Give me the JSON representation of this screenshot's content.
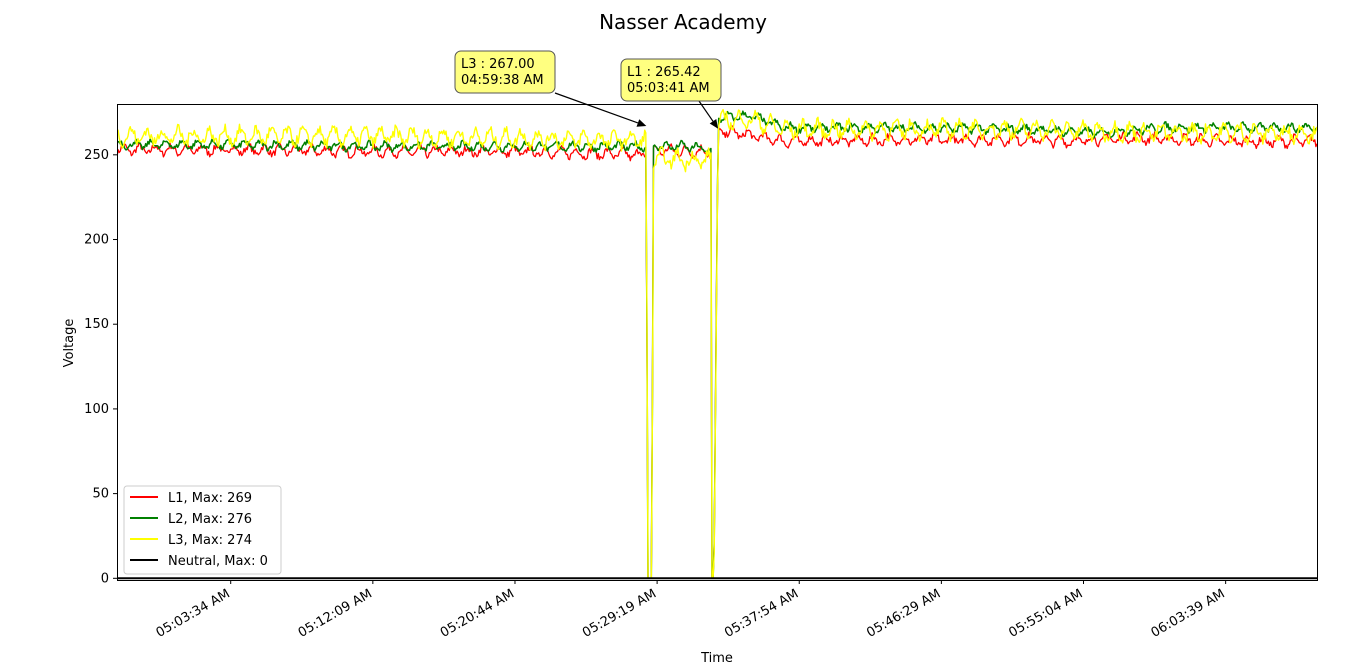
{
  "chart_data": {
    "type": "line",
    "title": "Nasser Academy",
    "xlabel": "Time",
    "ylabel": "Voltage",
    "x_range": [
      "04:56:42 AM",
      "06:09:10 AM"
    ],
    "ylim": [
      -1,
      280
    ],
    "grid": false,
    "legend_placement": "lower-left",
    "yticks": [
      0,
      50,
      100,
      150,
      200,
      250
    ],
    "xticks": [
      "05:03:34 AM",
      "05:12:09 AM",
      "05:20:44 AM",
      "05:29:19 AM",
      "05:37:54 AM",
      "05:46:29 AM",
      "05:55:04 AM",
      "06:03:39 AM"
    ],
    "outage_windows": [
      [
        "05:28:45 AM",
        "05:29:00 AM"
      ],
      [
        "05:32:35 AM",
        "05:32:45 AM"
      ]
    ],
    "series": [
      {
        "name": "L1, Max: 269",
        "color": "#ff0000",
        "x": [
          "04:56:42 AM",
          "05:04:00 AM",
          "05:12:00 AM",
          "05:20:00 AM",
          "05:25:00 AM",
          "05:28:40 AM",
          "05:28:45 AM",
          "05:29:00 AM",
          "05:29:05 AM",
          "05:31:00 AM",
          "05:32:35 AM",
          "05:32:45 AM",
          "05:33:00 AM",
          "05:34:00 AM",
          "05:37:00 AM",
          "05:45:00 AM",
          "05:52:00 AM",
          "05:54:00 AM",
          "05:58:00 AM",
          "06:04:00 AM",
          "06:09:10 AM"
        ],
        "y": [
          253,
          253,
          252,
          252,
          251,
          250,
          0,
          0,
          253,
          252,
          252,
          0,
          264,
          263,
          258,
          259,
          259,
          258,
          260,
          258,
          258
        ]
      },
      {
        "name": "L2, Max: 276",
        "color": "#008000",
        "x": [
          "04:56:42 AM",
          "05:04:00 AM",
          "05:12:00 AM",
          "05:20:00 AM",
          "05:25:00 AM",
          "05:28:40 AM",
          "05:28:45 AM",
          "05:29:00 AM",
          "05:29:05 AM",
          "05:31:00 AM",
          "05:32:35 AM",
          "05:32:45 AM",
          "05:33:00 AM",
          "05:35:00 AM",
          "05:37:00 AM",
          "05:45:00 AM",
          "05:52:00 AM",
          "05:56:00 AM",
          "06:00:00 AM",
          "06:09:10 AM"
        ],
        "y": [
          256,
          256,
          255,
          255,
          255,
          255,
          0,
          0,
          255,
          255,
          253,
          0,
          272,
          273,
          266,
          266,
          265,
          263,
          266,
          266
        ]
      },
      {
        "name": "L3, Max: 274",
        "color": "#ffff00",
        "x": [
          "04:56:42 AM",
          "05:04:00 AM",
          "05:12:00 AM",
          "05:20:00 AM",
          "05:25:00 AM",
          "05:28:40 AM",
          "05:28:45 AM",
          "05:29:00 AM",
          "05:29:05 AM",
          "05:31:00 AM",
          "05:32:35 AM",
          "05:32:45 AM",
          "05:33:00 AM",
          "05:35:00 AM",
          "05:37:00 AM",
          "05:45:00 AM",
          "05:52:00 AM",
          "05:56:00 AM",
          "06:00:00 AM",
          "06:09:10 AM"
        ],
        "y": [
          261,
          261,
          261,
          260,
          259,
          259,
          0,
          0,
          248,
          247,
          247,
          0,
          270,
          271,
          265,
          265,
          265,
          264,
          263,
          263
        ]
      },
      {
        "name": "Neutral, Max: 0",
        "color": "#000000",
        "x": [
          "04:56:42 AM",
          "06:09:10 AM"
        ],
        "y": [
          0,
          0
        ]
      }
    ],
    "annotations": [
      {
        "line1": "L3 : 267.00",
        "line2": "04:59:38 AM",
        "target_x": "05:28:40 AM",
        "target_y": 267
      },
      {
        "line1": "L1 : 265.42",
        "line2": "05:03:41 AM",
        "target_x": "05:33:00 AM",
        "target_y": 265.42
      }
    ]
  }
}
